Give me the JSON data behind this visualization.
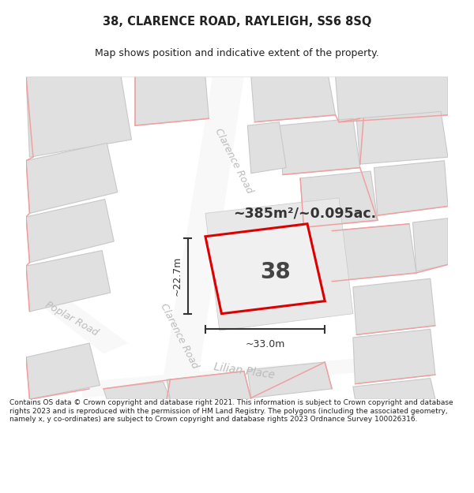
{
  "title": "38, CLARENCE ROAD, RAYLEIGH, SS6 8SQ",
  "subtitle": "Map shows position and indicative extent of the property.",
  "footer": "Contains OS data © Crown copyright and database right 2021. This information is subject to Crown copyright and database rights 2023 and is reproduced with the permission of HM Land Registry. The polygons (including the associated geometry, namely x, y co-ordinates) are subject to Crown copyright and database rights 2023 Ordnance Survey 100026316.",
  "area_label": "~385m²/~0.095ac.",
  "width_label": "~33.0m",
  "height_label": "~22.7m",
  "property_number": "38",
  "bg_color": "#ffffff",
  "map_bg": "#ffffff",
  "block_fill": "#e0e0e0",
  "block_stroke": "#c8c8c8",
  "red_line": "#dd0000",
  "pink_line": "#f0a0a0",
  "road_label_color": "#bbbbbb",
  "dim_color": "#333333",
  "title_color": "#222222",
  "footer_color": "#222222",
  "title_fontsize": 10.5,
  "subtitle_fontsize": 9,
  "footer_fontsize": 6.5
}
